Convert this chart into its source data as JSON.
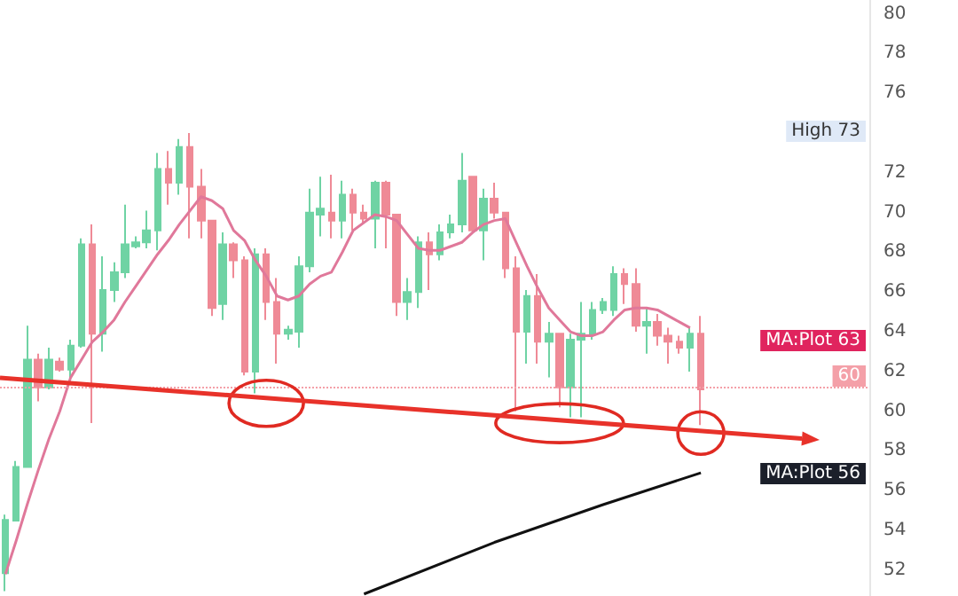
{
  "chart_data": {
    "type": "candlestick",
    "categories": [
      null,
      null,
      null,
      null,
      null,
      null,
      null,
      null,
      null,
      null,
      null,
      null,
      null,
      null,
      null,
      null,
      null,
      null,
      null,
      null,
      null,
      null,
      null,
      null,
      null,
      null,
      null,
      null,
      null,
      null,
      null,
      null,
      null,
      null,
      null,
      null,
      null,
      null,
      null,
      null,
      null,
      null,
      null,
      null,
      null,
      null,
      null,
      null,
      null,
      null,
      null,
      null,
      null,
      null,
      null,
      null,
      null,
      null,
      null,
      null,
      null,
      null,
      null,
      null,
      null,
      null,
      null,
      null,
      null,
      null,
      null,
      null,
      null,
      null,
      null,
      null,
      null,
      null,
      null,
      null
    ],
    "ylim": [
      50.7,
      80.7
    ],
    "yticks": [
      52,
      54,
      56,
      58,
      60,
      62,
      64,
      66,
      68,
      70,
      72,
      76,
      78,
      80
    ],
    "grid": false,
    "series": [
      {
        "type": "candlestick",
        "colors": [
          "#6fd3a4",
          "#6fd3a4",
          "#6fd3a4",
          "#ef8a96",
          "#6fd3a4",
          "#ef8a96",
          "#6fd3a4",
          "#6fd3a4",
          "#ef8a96",
          "#6fd3a4",
          "#6fd3a4",
          "#6fd3a4",
          "#6fd3a4",
          "#6fd3a4",
          "#6fd3a4",
          "#ef8a96",
          "#6fd3a4",
          "#ef8a96",
          "#ef8a96",
          "#ef8a96",
          "#6fd3a4",
          "#ef8a96",
          "#ef8a96",
          "#6fd3a4",
          "#ef8a96",
          "#ef8a96",
          "#6fd3a4",
          "#6fd3a4",
          "#6fd3a4",
          "#6fd3a4",
          "#ef8a96",
          "#6fd3a4",
          "#ef8a96",
          "#ef8a96",
          "#6fd3a4",
          "#ef8a96",
          "#ef8a96",
          "#6fd3a4",
          "#6fd3a4",
          "#ef8a96",
          "#6fd3a4",
          "#6fd3a4",
          "#6fd3a4",
          "#ef8a96",
          "#6fd3a4",
          "#ef8a96",
          "#ef8a96",
          "#ef8a96",
          "#6fd3a4",
          "#ef8a96",
          "#6fd3a4",
          "#ef8a96",
          "#6fd3a4",
          "#6fd3a4",
          "#6fd3a4",
          "#6fd3a4",
          "#6fd3a4",
          "#ef8a96",
          "#ef8a96",
          "#6fd3a4",
          "#ef8a96",
          "#ef8a96",
          "#ef8a96",
          "#6fd3a4",
          "#ef8a96",
          null,
          null,
          null,
          null,
          null,
          null,
          null,
          null,
          null,
          null,
          null,
          null,
          null,
          null,
          null
        ],
        "ohlc": [
          [
            51.85,
            54.8,
            50.95,
            54.53
          ],
          [
            54.5,
            57.5,
            54.5,
            57.2
          ],
          [
            57.2,
            64.3,
            57.2,
            62.6
          ],
          [
            62.6,
            62.9,
            60.5,
            61.2
          ],
          [
            61.2,
            63.2,
            61.1,
            62.6
          ],
          [
            62.5,
            62.7,
            62.0,
            62.1
          ],
          [
            62.1,
            63.6,
            61.5,
            63.3
          ],
          [
            63.3,
            68.7,
            63.2,
            68.4
          ],
          [
            68.4,
            69.4,
            59.4,
            63.9
          ],
          [
            63.9,
            67.8,
            63.0,
            66.1
          ],
          [
            66.1,
            67.5,
            65.5,
            67.0
          ],
          [
            67.0,
            70.4,
            66.7,
            68.4
          ],
          [
            68.3,
            68.8,
            68.2,
            68.5
          ],
          [
            68.5,
            70.1,
            68.2,
            69.1
          ],
          [
            69.1,
            73.0,
            68.1,
            72.2
          ],
          [
            72.2,
            73.1,
            70.4,
            71.5
          ],
          [
            71.5,
            73.7,
            70.9,
            73.3
          ],
          [
            73.3,
            74.0,
            68.7,
            71.3
          ],
          [
            71.3,
            72.2,
            68.7,
            69.6
          ],
          [
            69.6,
            69.6,
            64.8,
            65.2
          ],
          [
            65.4,
            69.0,
            64.6,
            68.4
          ],
          [
            68.4,
            68.5,
            66.7,
            67.6
          ],
          [
            67.6,
            67.8,
            61.8,
            62.0
          ],
          [
            62.0,
            68.2,
            60.9,
            67.9
          ],
          [
            67.9,
            68.2,
            64.6,
            65.5
          ],
          [
            65.5,
            66.7,
            62.4,
            63.9
          ],
          [
            63.9,
            64.3,
            63.6,
            64.1
          ],
          [
            64.0,
            67.8,
            63.2,
            67.3
          ],
          [
            67.3,
            71.2,
            67.0,
            70.0
          ],
          [
            69.9,
            71.8,
            68.8,
            70.2
          ],
          [
            70.0,
            71.9,
            68.7,
            69.6
          ],
          [
            69.6,
            71.6,
            68.7,
            70.9
          ],
          [
            70.9,
            71.2,
            69.1,
            70.0
          ],
          [
            70.0,
            70.4,
            69.4,
            69.7
          ],
          [
            69.7,
            71.6,
            68.2,
            71.5
          ],
          [
            71.5,
            71.6,
            68.2,
            69.9
          ],
          [
            69.9,
            69.9,
            64.8,
            65.5
          ],
          [
            65.5,
            66.7,
            64.6,
            66.0
          ],
          [
            66.0,
            68.8,
            65.2,
            68.5
          ],
          [
            68.5,
            69.0,
            66.1,
            67.9
          ],
          [
            67.9,
            69.4,
            67.6,
            69.0
          ],
          [
            69.0,
            69.9,
            68.7,
            69.4
          ],
          [
            69.4,
            73.0,
            69.0,
            71.6
          ],
          [
            71.8,
            71.8,
            69.0,
            69.1
          ],
          [
            69.1,
            71.2,
            67.6,
            70.7
          ],
          [
            70.7,
            71.5,
            69.7,
            70.0
          ],
          [
            70.0,
            70.0,
            66.7,
            67.2
          ],
          [
            67.2,
            67.8,
            60.0,
            64.0
          ],
          [
            64.0,
            66.1,
            62.4,
            65.8
          ],
          [
            65.8,
            66.9,
            62.4,
            63.5
          ],
          [
            63.5,
            64.5,
            61.7,
            63.9
          ],
          [
            63.9,
            63.9,
            60.2,
            61.2
          ],
          [
            61.2,
            63.9,
            59.7,
            63.6
          ],
          [
            63.6,
            65.5,
            59.7,
            63.9
          ],
          [
            63.9,
            65.5,
            63.6,
            65.1
          ],
          [
            65.1,
            65.7,
            64.9,
            65.5
          ],
          [
            65.1,
            67.3,
            64.8,
            66.9
          ],
          [
            66.9,
            67.2,
            65.4,
            66.4
          ],
          [
            66.4,
            67.2,
            64.0,
            64.3
          ],
          [
            64.3,
            65.2,
            62.9,
            64.5
          ],
          [
            64.5,
            64.9,
            63.3,
            63.8
          ],
          [
            63.8,
            64.2,
            62.4,
            63.5
          ],
          [
            63.5,
            63.8,
            62.9,
            63.2
          ],
          [
            63.2,
            64.2,
            62.0,
            63.9
          ],
          [
            63.9,
            64.8,
            59.3,
            61.1
          ],
          null,
          null,
          null,
          null,
          null,
          null,
          null,
          null,
          null,
          null,
          null,
          null,
          null,
          null,
          null
        ]
      },
      {
        "type": "line",
        "color": "#e0789a",
        "values": [
          51.8,
          53.5,
          55.3,
          57.0,
          58.6,
          60.0,
          61.7,
          62.6,
          63.5,
          64.0,
          64.6,
          65.5,
          66.3,
          67.1,
          67.9,
          68.6,
          69.4,
          70.1,
          70.8,
          70.6,
          70.2,
          69.1,
          68.6,
          67.6,
          66.8,
          65.8,
          65.6,
          65.8,
          66.4,
          66.8,
          67.0,
          68.0,
          69.1,
          69.5,
          69.9,
          69.8,
          69.6,
          68.9,
          68.2,
          68.1,
          68.1,
          68.3,
          68.5,
          69.0,
          69.4,
          69.6,
          69.7,
          68.5,
          67.3,
          66.2,
          65.2,
          64.6,
          64.0,
          63.8,
          63.8,
          64.0,
          64.6,
          65.1,
          65.2,
          65.2,
          65.1,
          64.8,
          64.5,
          64.2,
          null,
          null,
          null,
          null,
          null,
          null,
          null,
          null,
          null,
          null,
          null,
          null,
          null,
          null,
          null,
          null
        ]
      },
      {
        "type": "line",
        "color": "#111111",
        "values": [
          null,
          null,
          null,
          null,
          null,
          null,
          null,
          null,
          null,
          null,
          null,
          null,
          null,
          null,
          null,
          null,
          null,
          null,
          null,
          null,
          null,
          null,
          null,
          null,
          null,
          null,
          null,
          null,
          null,
          null,
          null,
          null,
          null,
          50.8,
          null,
          null,
          null,
          null,
          null,
          null,
          null,
          null,
          null,
          null,
          null,
          53.4,
          null,
          null,
          null,
          null,
          null,
          null,
          null,
          null,
          null,
          55.3,
          null,
          null,
          null,
          null,
          null,
          null,
          null,
          null,
          56.9,
          null,
          null,
          null,
          null,
          null,
          null,
          null,
          null,
          null,
          null,
          null,
          null,
          null,
          null,
          null
        ]
      }
    ],
    "ref_lines": [
      {
        "axis": "y",
        "value": 61.2,
        "color": "#f4a0a8",
        "line_style": "dotted"
      }
    ],
    "annotations": [
      "High 73",
      "MA:Plot 63",
      "60",
      "MA:Plot 56"
    ]
  }
}
